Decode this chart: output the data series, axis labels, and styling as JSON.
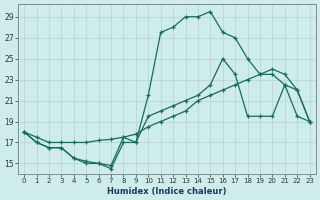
{
  "xlabel": "Humidex (Indice chaleur)",
  "background_color": "#ceecea",
  "grid_color": "#b8d8d4",
  "line_color": "#1a6b5a",
  "xlim": [
    -0.5,
    23.5
  ],
  "ylim": [
    14.0,
    30.2
  ],
  "yticks": [
    15,
    17,
    19,
    21,
    23,
    25,
    27,
    29
  ],
  "xticks": [
    0,
    1,
    2,
    3,
    4,
    5,
    6,
    7,
    8,
    9,
    10,
    11,
    12,
    13,
    14,
    15,
    16,
    17,
    18,
    19,
    20,
    21,
    22,
    23
  ],
  "series1_x": [
    0,
    1,
    2,
    3,
    4,
    5,
    6,
    7,
    8,
    9,
    10,
    11,
    12,
    13,
    14,
    15,
    16,
    17,
    18,
    19,
    20,
    21,
    22,
    23
  ],
  "series1_y": [
    18.0,
    17.5,
    17.0,
    17.0,
    17.0,
    17.0,
    17.2,
    17.3,
    17.5,
    17.8,
    18.5,
    19.0,
    19.5,
    20.0,
    21.0,
    21.5,
    22.0,
    22.5,
    23.0,
    23.5,
    24.0,
    23.5,
    22.0,
    19.0
  ],
  "series2_x": [
    0,
    1,
    2,
    3,
    4,
    5,
    6,
    7,
    8,
    9,
    10,
    11,
    12,
    13,
    14,
    15,
    16,
    17,
    18,
    19,
    20,
    21,
    22,
    23
  ],
  "series2_y": [
    18.0,
    17.0,
    16.5,
    16.5,
    15.5,
    15.0,
    15.0,
    14.8,
    17.5,
    17.0,
    21.5,
    27.5,
    28.0,
    29.0,
    29.0,
    29.5,
    27.5,
    27.0,
    25.0,
    23.5,
    23.5,
    22.5,
    22.0,
    19.0
  ],
  "series3_x": [
    0,
    1,
    2,
    3,
    4,
    5,
    6,
    7,
    8,
    9,
    10,
    11,
    12,
    13,
    14,
    15,
    16,
    17,
    18,
    19,
    20,
    21,
    22,
    23
  ],
  "series3_y": [
    18.0,
    17.0,
    16.5,
    16.5,
    15.5,
    15.2,
    15.0,
    14.5,
    17.0,
    17.0,
    19.5,
    20.0,
    20.5,
    21.0,
    21.5,
    22.5,
    25.0,
    23.5,
    19.5,
    19.5,
    19.5,
    22.5,
    19.5,
    19.0
  ]
}
